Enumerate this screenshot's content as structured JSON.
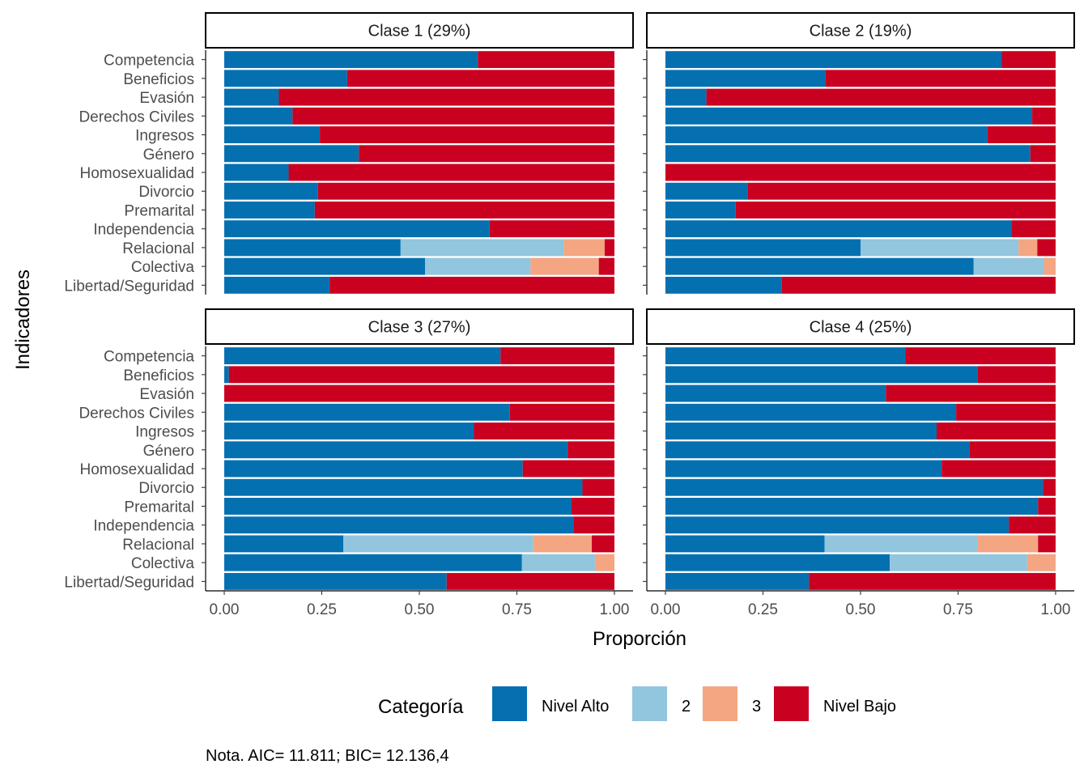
{
  "chart_data": {
    "type": "bar",
    "orientation": "horizontal",
    "stacked": true,
    "xlabel": "Proporción",
    "ylabel": "Indicadores",
    "xlim": [
      0,
      1
    ],
    "xticks": [
      "0.00",
      "0.25",
      "0.50",
      "0.75",
      "1.00"
    ],
    "categories": [
      "Competencia",
      "Beneficios",
      "Evasión",
      "Derechos Civiles",
      "Ingresos",
      "Género",
      "Homosexualidad",
      "Divorcio",
      "Premarital",
      "Independencia",
      "Relacional",
      "Colectiva",
      "Libertad/Seguridad"
    ],
    "legend": {
      "title": "Categoría",
      "position": "bottom",
      "items": [
        {
          "label": "Nivel Alto",
          "color": "#0570b0"
        },
        {
          "label": "2",
          "color": "#92c5de"
        },
        {
          "label": "3",
          "color": "#f4a582"
        },
        {
          "label": "Nivel Bajo",
          "color": "#ca0020"
        }
      ]
    },
    "note": "Nota. AIC= 11.811; BIC= 12.136,4",
    "panels": [
      {
        "title": "Clase 1 (29%)",
        "rows": [
          [
            0.65,
            0,
            0,
            0.35
          ],
          [
            0.315,
            0,
            0,
            0.685
          ],
          [
            0.14,
            0,
            0,
            0.86
          ],
          [
            0.175,
            0,
            0,
            0.825
          ],
          [
            0.245,
            0,
            0,
            0.755
          ],
          [
            0.345,
            0,
            0,
            0.655
          ],
          [
            0.165,
            0,
            0,
            0.835
          ],
          [
            0.24,
            0,
            0,
            0.76
          ],
          [
            0.232,
            0,
            0,
            0.768
          ],
          [
            0.68,
            0,
            0,
            0.32
          ],
          [
            0.452,
            0.418,
            0.105,
            0.025
          ],
          [
            0.515,
            0.27,
            0.175,
            0.04
          ],
          [
            0.27,
            0,
            0,
            0.73
          ]
        ]
      },
      {
        "title": "Clase 2 (19%)",
        "rows": [
          [
            0.862,
            0,
            0,
            0.138
          ],
          [
            0.41,
            0,
            0,
            0.59
          ],
          [
            0.105,
            0,
            0,
            0.895
          ],
          [
            0.94,
            0,
            0,
            0.06
          ],
          [
            0.825,
            0,
            0,
            0.175
          ],
          [
            0.935,
            0,
            0,
            0.065
          ],
          [
            0.0,
            0,
            0,
            1.0
          ],
          [
            0.21,
            0,
            0,
            0.79
          ],
          [
            0.18,
            0,
            0,
            0.82
          ],
          [
            0.888,
            0,
            0,
            0.112
          ],
          [
            0.5,
            0.405,
            0.048,
            0.047
          ],
          [
            0.79,
            0.18,
            0.03,
            0.0
          ],
          [
            0.298,
            0,
            0,
            0.702
          ]
        ]
      },
      {
        "title": "Clase 3 (27%)",
        "rows": [
          [
            0.708,
            0,
            0,
            0.292
          ],
          [
            0.012,
            0,
            0,
            0.988
          ],
          [
            0.0,
            0,
            0,
            1.0
          ],
          [
            0.732,
            0,
            0,
            0.268
          ],
          [
            0.64,
            0,
            0,
            0.36
          ],
          [
            0.88,
            0,
            0,
            0.12
          ],
          [
            0.765,
            0,
            0,
            0.235
          ],
          [
            0.918,
            0,
            0,
            0.082
          ],
          [
            0.89,
            0,
            0,
            0.11
          ],
          [
            0.895,
            0,
            0,
            0.105
          ],
          [
            0.305,
            0.487,
            0.15,
            0.058
          ],
          [
            0.763,
            0.187,
            0.05,
            0.0
          ],
          [
            0.57,
            0,
            0,
            0.43
          ]
        ]
      },
      {
        "title": "Clase 4 (25%)",
        "rows": [
          [
            0.615,
            0,
            0,
            0.385
          ],
          [
            0.8,
            0,
            0,
            0.2
          ],
          [
            0.565,
            0,
            0,
            0.435
          ],
          [
            0.745,
            0,
            0,
            0.255
          ],
          [
            0.695,
            0,
            0,
            0.305
          ],
          [
            0.78,
            0,
            0,
            0.22
          ],
          [
            0.708,
            0,
            0,
            0.292
          ],
          [
            0.968,
            0,
            0,
            0.032
          ],
          [
            0.955,
            0,
            0,
            0.045
          ],
          [
            0.88,
            0,
            0,
            0.12
          ],
          [
            0.408,
            0.392,
            0.155,
            0.045
          ],
          [
            0.575,
            0.352,
            0.073,
            0.0
          ],
          [
            0.368,
            0,
            0,
            0.632
          ]
        ]
      }
    ]
  }
}
